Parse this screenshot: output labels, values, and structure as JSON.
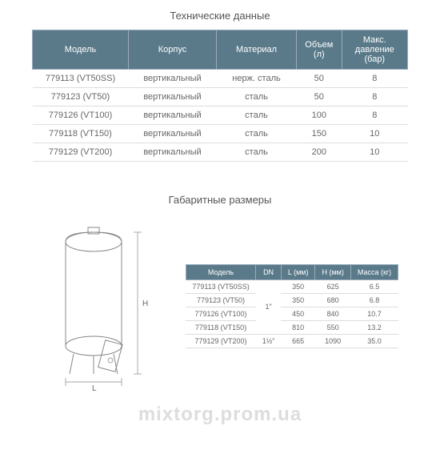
{
  "tech": {
    "title": "Технические данные",
    "headers": [
      "Модель",
      "Корпус",
      "Материал",
      "Объем (л)",
      "Макс. давление (бар)"
    ],
    "rows": [
      [
        "779113 (VT50SS)",
        "вертикальный",
        "нерж. сталь",
        "50",
        "8"
      ],
      [
        "779123 (VT50)",
        "вертикальный",
        "сталь",
        "50",
        "8"
      ],
      [
        "779126 (VT100)",
        "вертикальный",
        "сталь",
        "100",
        "8"
      ],
      [
        "779118 (VT150)",
        "вертикальный",
        "сталь",
        "150",
        "10"
      ],
      [
        "779129 (VT200)",
        "вертикальный",
        "сталь",
        "200",
        "10"
      ]
    ]
  },
  "dim": {
    "title": "Габаритные размеры",
    "headers": [
      "Модель",
      "DN",
      "L (мм)",
      "H (мм)",
      "Масса (кг)"
    ],
    "rows": [
      [
        "779113 (VT50SS)",
        "",
        "350",
        "625",
        "6.5"
      ],
      [
        "779123 (VT50)",
        "",
        "350",
        "680",
        "6.8"
      ],
      [
        "779126 (VT100)",
        "",
        "450",
        "840",
        "10.7"
      ],
      [
        "779118 (VT150)",
        "",
        "810",
        "550",
        "13.2"
      ],
      [
        "779129 (VT200)",
        "1½\"",
        "665",
        "1090",
        "35.0"
      ]
    ],
    "dn_merged": "1\"",
    "label_L": "L",
    "label_H": "H"
  },
  "watermark": "mixtorg.prom.ua",
  "colors": {
    "header_bg": "#5a7a8a",
    "header_text": "#ffffff",
    "cell_text": "#666666",
    "border": "#dddddd",
    "watermark": "#dddddd"
  }
}
